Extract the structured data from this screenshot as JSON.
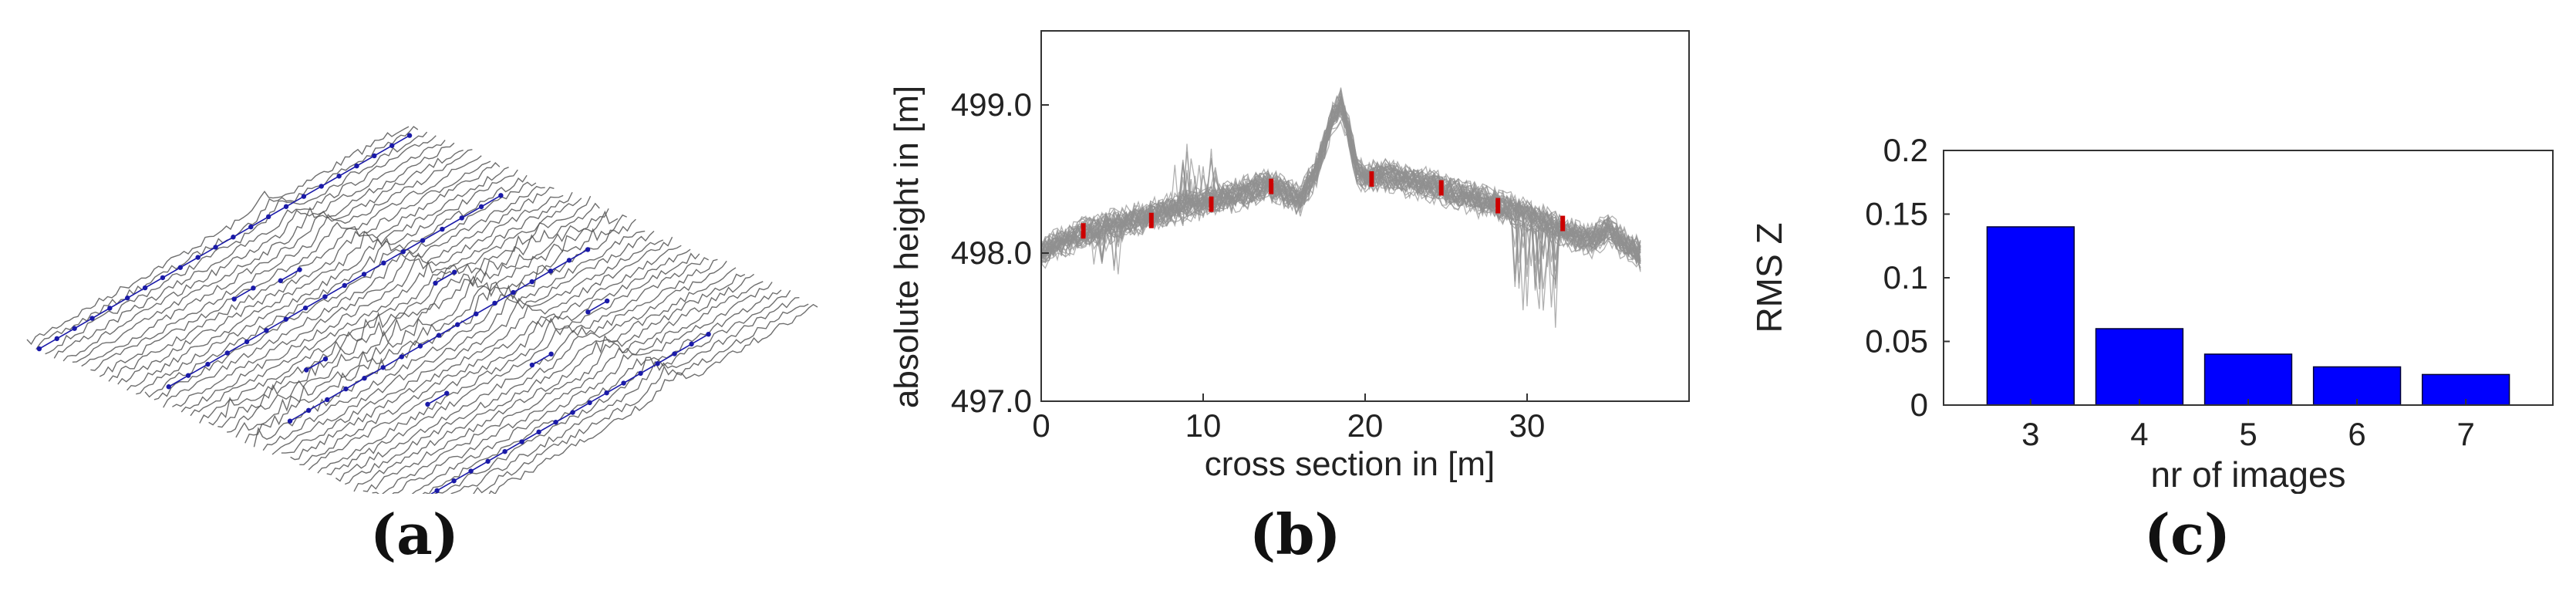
{
  "panel_labels": [
    "(a)",
    "(b)",
    "(c)"
  ],
  "chart_data": [
    {
      "type": "surface",
      "panel": "(a)",
      "title": "",
      "colors": {
        "profile_lines": "#555555",
        "points": "#1a1aa8"
      }
    },
    {
      "type": "line",
      "panel": "(b)",
      "title": "",
      "xlabel": "cross section in [m]",
      "ylabel": "absolute height in [m]",
      "xlim": [
        0,
        40
      ],
      "ylim": [
        497.0,
        499.5
      ],
      "xticks": [
        0,
        10,
        20,
        30
      ],
      "yticks": [
        497.0,
        498.0,
        499.0
      ],
      "ytick_labels": [
        "497.0",
        "498.0",
        "499.0"
      ],
      "mean_profile": {
        "x": [
          0,
          2,
          4,
          6,
          8,
          10,
          12,
          14,
          15,
          16,
          17,
          18,
          18.5,
          19,
          19.5,
          20,
          21,
          22,
          24,
          26,
          28,
          30,
          31,
          32,
          33,
          34,
          35,
          36,
          37
        ],
        "y": [
          498.0,
          498.1,
          498.17,
          498.22,
          498.28,
          498.33,
          498.38,
          498.45,
          498.4,
          498.35,
          498.55,
          498.9,
          499.0,
          498.8,
          498.55,
          498.5,
          498.52,
          498.5,
          498.45,
          498.38,
          498.32,
          498.25,
          498.2,
          498.15,
          498.1,
          498.08,
          498.15,
          498.05,
          497.98
        ]
      },
      "profile_count": 40,
      "markers": {
        "x": [
          2.6,
          6.8,
          10.5,
          14.2,
          20.4,
          24.7,
          28.2,
          32.2
        ],
        "y": [
          498.15,
          498.22,
          498.33,
          498.45,
          498.5,
          498.44,
          498.32,
          498.2
        ]
      },
      "colors": {
        "profiles": "#909090",
        "markers": "#cc0000",
        "axes": "#333333"
      },
      "grid": false
    },
    {
      "type": "bar",
      "panel": "(c)",
      "title": "",
      "categories": [
        "3",
        "4",
        "5",
        "6",
        "7"
      ],
      "values": [
        0.14,
        0.06,
        0.04,
        0.03,
        0.024
      ],
      "xlabel": "nr of images",
      "ylabel": "RMS Z",
      "ylim": [
        0,
        0.2
      ],
      "yticks": [
        0,
        0.05,
        0.1,
        0.15,
        0.2
      ],
      "ytick_labels": [
        "0",
        "0.05",
        "0.1",
        "0.15",
        "0.2"
      ],
      "colors": {
        "bars": "#0000ff",
        "bar_edge": "#000033",
        "axes": "#333333"
      },
      "grid": false
    }
  ]
}
